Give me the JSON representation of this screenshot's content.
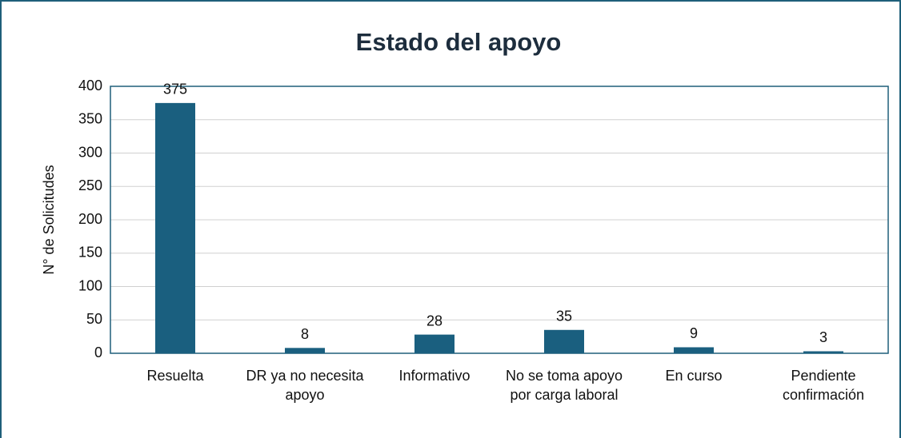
{
  "chart_data": {
    "type": "bar",
    "title": "Estado del apoyo",
    "y_label": "N° de Solicitudes",
    "categories": [
      "Resuelta",
      "DR ya no necesita apoyo",
      "Informativo",
      "No se toma apoyo por carga laboral",
      "En curso",
      "Pendiente confirmación"
    ],
    "values": [
      375,
      8,
      28,
      35,
      9,
      3
    ],
    "color": "#1a5f7f",
    "ylim": [
      0,
      400
    ],
    "yticks": [
      0,
      50,
      100,
      150,
      200,
      250,
      300,
      350,
      400
    ],
    "grid": true
  }
}
